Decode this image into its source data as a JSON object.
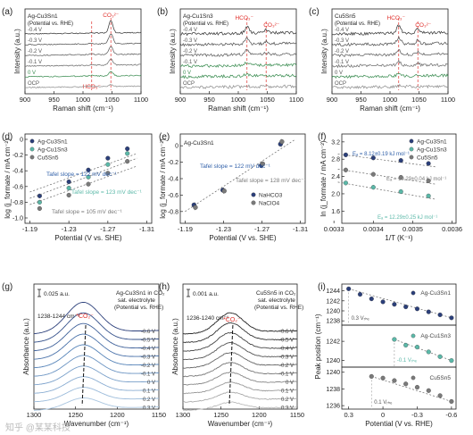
{
  "colors": {
    "navy": "#2b3f7a",
    "teal": "#5bb8a8",
    "gray": "#7a7a7a",
    "green": "#3f8f55",
    "red": "#e0312d",
    "trend": "#666666",
    "blueText": "#2f5fa8",
    "midgray": "#808080"
  },
  "watermark": "知乎 @某某科技",
  "chart_data": [
    {
      "panel": "a",
      "type": "line",
      "xlabel": "Raman shift (cm⁻¹)",
      "ylabel": "Intensity (a.u.)",
      "title": "Ag-Cu3Sn1",
      "subtitle": "(Potential vs. RHE)",
      "xlim": [
        900,
        1100
      ],
      "xticks": [
        "900",
        "950",
        "1000",
        "1050",
        "1100"
      ],
      "series": [
        {
          "label": "-0.4 V",
          "values": [
            0.8,
            1.2,
            2.0,
            3.0,
            13.0,
            3.0,
            1.5,
            1.0
          ]
        },
        {
          "label": "-0.3 V",
          "values": [
            0.8,
            1.2,
            1.8,
            2.6,
            11.0,
            2.6,
            1.3,
            1.0
          ]
        },
        {
          "label": "-0.2 V",
          "values": [
            0.8,
            1.1,
            1.7,
            2.4,
            9.0,
            2.2,
            1.2,
            0.9
          ]
        },
        {
          "label": "-0.1 V",
          "values": [
            0.8,
            1.0,
            1.5,
            2.0,
            7.0,
            1.8,
            1.1,
            0.8
          ]
        },
        {
          "label": "0 V",
          "values": [
            0.8,
            1.0,
            1.3,
            1.8,
            5.0,
            1.6,
            1.0,
            0.8
          ]
        },
        {
          "label": "OCP",
          "values": [
            0.5,
            0.6,
            0.8,
            1.0,
            2.0,
            0.8,
            0.6,
            0.5
          ]
        }
      ],
      "annotations": [
        "CO₃²⁻",
        "HCO₃⁻"
      ],
      "peaks": [
        1048,
        1015
      ]
    },
    {
      "panel": "b",
      "type": "line",
      "xlabel": "Raman shift (cm⁻¹)",
      "ylabel": "Intensity (a.u.)",
      "title": "Ag-Cu1Sn3",
      "subtitle": "(Potential vs. RHE)",
      "xlim": [
        900,
        1100
      ],
      "xticks": [
        "900",
        "950",
        "1000",
        "1050",
        "1100"
      ],
      "series": [
        {
          "label": "-0.4 V"
        },
        {
          "label": "-0.3 V"
        },
        {
          "label": "-0.2 V"
        },
        {
          "label": "-0.1 V"
        },
        {
          "label": "0 V"
        },
        {
          "label": "OCP"
        }
      ],
      "annotations": [
        "HCO₃⁻",
        "CO₃²⁻"
      ],
      "peaks": [
        1015,
        1048
      ]
    },
    {
      "panel": "c",
      "type": "line",
      "xlabel": "Raman shift (cm⁻¹)",
      "ylabel": "Intensity (a.u.)",
      "title": "Cu5Sn5",
      "subtitle": "(Potential vs. RHE)",
      "xlim": [
        900,
        1100
      ],
      "xticks": [
        "900",
        "950",
        "1000",
        "1050",
        "1100"
      ],
      "series": [
        {
          "label": "-0.4 V"
        },
        {
          "label": "-0.3 V"
        },
        {
          "label": "-0.2 V"
        },
        {
          "label": "-0.1 V"
        },
        {
          "label": "0 V"
        },
        {
          "label": "OCP"
        }
      ],
      "annotations": [
        "HCO₃⁻",
        "CO₃²⁻"
      ],
      "peaks": [
        1015,
        1048
      ]
    },
    {
      "panel": "d",
      "type": "scatter",
      "xlabel": "Potential (V vs. SHE)",
      "ylabel": "log (j_formate / mA cm⁻²)",
      "xlim": [
        -1.19,
        -1.31
      ],
      "ylim": [
        -1.0,
        0.0
      ],
      "xticks": [
        "-1.19",
        "-1.23",
        "-1.27",
        "-1.31"
      ],
      "yticks": [
        "0",
        "-0.2",
        "-0.4",
        "-0.6",
        "-0.8",
        "-1.0"
      ],
      "series": [
        {
          "name": "Ag-Cu3Sn1",
          "x": [
            -1.2,
            -1.23,
            -1.25,
            -1.27,
            -1.29
          ],
          "y": [
            -0.72,
            -0.54,
            -0.39,
            -0.24,
            -0.12
          ]
        },
        {
          "name": "Ag-Cu1Sn3",
          "x": [
            -1.2,
            -1.23,
            -1.25,
            -1.27,
            -1.29
          ],
          "y": [
            -0.8,
            -0.62,
            -0.48,
            -0.32,
            -0.18
          ]
        },
        {
          "name": "Cu5Sn5",
          "x": [
            -1.2,
            -1.23,
            -1.25,
            -1.27,
            -1.29
          ],
          "y": [
            -0.88,
            -0.71,
            -0.57,
            -0.43,
            -0.28
          ]
        }
      ],
      "annotations": [
        "Tafel slope = 122 mV dec⁻¹",
        "Tafel slope = 123 mV dec⁻¹",
        "Tafel slope = 105 mV dec⁻¹"
      ]
    },
    {
      "panel": "e",
      "type": "scatter",
      "title": "Ag-Cu3Sn1",
      "xlabel": "Potential (V vs. SHE)",
      "ylabel": "log (j_formate / mA cm⁻²)",
      "xlim": [
        -1.19,
        -1.31
      ],
      "ylim": [
        -1.0,
        0.2
      ],
      "xticks": [
        "-1.19",
        "-1.23",
        "-1.27",
        "-1.31"
      ],
      "yticks": [
        "0",
        "-0.2",
        "-0.4",
        "-0.6",
        "-0.8"
      ],
      "series": [
        {
          "name": "NaHCO3",
          "x": [
            -1.2,
            -1.23,
            -1.27,
            -1.29
          ],
          "y": [
            -0.72,
            -0.54,
            -0.24,
            0.02
          ]
        },
        {
          "name": "NaClO4",
          "x": [
            -1.2,
            -1.23,
            -1.27,
            -1.29
          ],
          "y": [
            -0.75,
            -0.55,
            -0.22,
            0.05
          ]
        }
      ],
      "annotations": [
        "Tafel slope = 122 mV dec⁻¹",
        "Tafel slope = 128 mV dec⁻¹"
      ]
    },
    {
      "panel": "f",
      "type": "scatter",
      "xlabel": "1/T (K⁻¹)",
      "ylabel": "ln (j_formate / mA cm⁻²)",
      "xlim": [
        0.0033,
        0.0036
      ],
      "ylim": [
        1.0,
        3.4
      ],
      "xticks": [
        "0.0033",
        "0.0034",
        "0.0035",
        "0.0036"
      ],
      "yticks": [
        "3.2",
        "2.8",
        "2.4",
        "2.0",
        "1.6"
      ],
      "series": [
        {
          "name": "Ag-Cu3Sn1",
          "x": [
            0.00333,
            0.00339,
            0.00345,
            0.00351
          ],
          "y": [
            2.85,
            2.78,
            2.72,
            2.65
          ]
        },
        {
          "name": "Ag-Cu1Sn3",
          "x": [
            0.00333,
            0.00339,
            0.00345,
            0.00351
          ],
          "y": [
            2.25,
            2.15,
            2.05,
            1.95
          ]
        },
        {
          "name": "Cu5Sn5",
          "x": [
            0.00333,
            0.00339,
            0.00345,
            0.00351
          ],
          "y": [
            2.55,
            2.45,
            2.38,
            2.3
          ]
        }
      ],
      "annotations": [
        "Eₐ = 8.12±0.19 kJ mol⁻¹",
        "Eₐ = 10.29±0.04 kJ mol⁻¹",
        "Eₐ = 12.29±0.25 kJ mol⁻¹"
      ]
    },
    {
      "panel": "g",
      "type": "line",
      "xlabel": "Wavenumber (cm⁻¹)",
      "ylabel": "Absorbance (a.u.)",
      "title": "Ag-Cu3Sn1 in CO₂",
      "subtitle": "sat. electrolyte\n(Potential vs. RHE)",
      "xlim": [
        1300,
        1150
      ],
      "xticks": [
        "1300",
        "1250",
        "1200",
        "1150"
      ],
      "series": [
        {
          "label": "-0.6 V"
        },
        {
          "label": "-0.5 V"
        },
        {
          "label": "-0.4 V"
        },
        {
          "label": "-0.3 V"
        },
        {
          "label": "-0.2 V"
        },
        {
          "label": "-0.1 V"
        },
        {
          "label": "0 V"
        },
        {
          "label": "0.1 V"
        },
        {
          "label": "0.2 V"
        },
        {
          "label": "0.3 V"
        }
      ],
      "annotations": [
        "0.025 a.u.",
        "*CO₂⁻",
        "1238-1244 cm⁻¹"
      ]
    },
    {
      "panel": "h",
      "type": "line",
      "xlabel": "Wavenumber (cm⁻¹)",
      "ylabel": "Absorbance (a.u.)",
      "title": "Cu5Sn5 in CO₂",
      "subtitle": "sat. electrolyte\n(Potential vs. RHE)",
      "xlim": [
        1300,
        1150
      ],
      "xticks": [
        "1300",
        "1250",
        "1200",
        "1150"
      ],
      "series": [
        {
          "label": "-0.6 V"
        },
        {
          "label": "-0.5 V"
        },
        {
          "label": "-0.4 V"
        },
        {
          "label": "-0.3 V"
        },
        {
          "label": "-0.2 V"
        },
        {
          "label": "-0.1 V"
        },
        {
          "label": "0 V"
        },
        {
          "label": "0.1 V"
        },
        {
          "label": "0.2 V"
        },
        {
          "label": "0.3 V"
        }
      ],
      "annotations": [
        "0.001 a.u.",
        "*CO₂⁻",
        "1236-1240 cm⁻¹"
      ]
    },
    {
      "panel": "i",
      "type": "scatter",
      "xlabel": "Potential (V vs. RHE)",
      "ylabel": "Peak position (cm⁻¹)",
      "xlim": [
        0.35,
        -0.65
      ],
      "xticks": [
        "0.3",
        "0",
        "-0.3",
        "-0.6"
      ],
      "series": [
        {
          "name": "Ag-Cu3Sn1",
          "x": [
            0.3,
            0.2,
            0.1,
            0,
            -0.1,
            -0.2,
            -0.3,
            -0.4,
            -0.5,
            -0.6
          ],
          "y": [
            1244.4,
            1243.3,
            1242.4,
            1241.8,
            1241.3,
            1240.8,
            1240.4,
            1239.8,
            1239.2,
            1238.6
          ],
          "yticks": [
            "1244",
            "1242",
            "1240",
            "1238"
          ],
          "note": "0.3 Vᵣₕₑ"
        },
        {
          "name": "Ag-Cu1Sn3",
          "x": [
            -0.1,
            -0.2,
            -0.3,
            -0.4,
            -0.5,
            -0.6
          ],
          "y": [
            1242.2,
            1241.6,
            1241.4,
            1240.9,
            1240.4,
            1240.0
          ],
          "yticks": [
            "1244",
            "1242",
            "1240"
          ],
          "note": "-0.1 Vᵣₕₑ"
        },
        {
          "name": "Cu5Sn5",
          "x": [
            0.1,
            0,
            -0.1,
            -0.2,
            -0.3,
            -0.4,
            -0.5,
            -0.6
          ],
          "y": [
            1239.5,
            1239.3,
            1239.0,
            1238.6,
            1238.2,
            1237.8,
            1237.2,
            1236.5
          ],
          "yticks": [
            "1240",
            "1238",
            "1236"
          ],
          "note": "0.1 Vᵣₕₑ"
        }
      ]
    }
  ]
}
